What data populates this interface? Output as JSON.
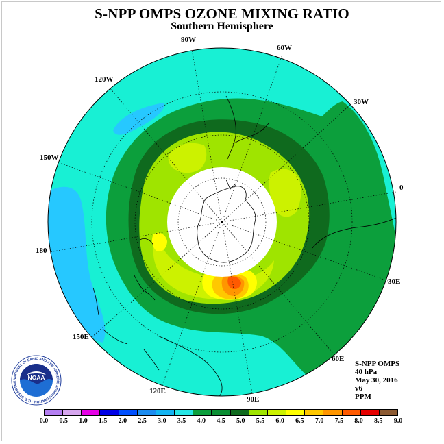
{
  "title": "S-NPP OMPS OZONE MIXING RATIO",
  "subtitle": "Southern Hemisphere",
  "longitude_labels": [
    {
      "text": "90W"
    },
    {
      "text": "60W"
    },
    {
      "text": "120W"
    },
    {
      "text": "30W"
    },
    {
      "text": "150W"
    },
    {
      "text": "0"
    },
    {
      "text": "180"
    },
    {
      "text": "30E"
    },
    {
      "text": "150E"
    },
    {
      "text": "60E"
    },
    {
      "text": "120E"
    },
    {
      "text": "90E"
    }
  ],
  "info": {
    "instrument": "S-NPP OMPS",
    "level": "40 hPa",
    "date": "May 30, 2016",
    "version": "v6",
    "units": "PPM"
  },
  "legend": {
    "ticks": [
      "0.0",
      "0.5",
      "1.0",
      "1.5",
      "2.0",
      "2.5",
      "3.0",
      "3.5",
      "4.0",
      "4.5",
      "5.0",
      "5.5",
      "6.0",
      "6.5",
      "7.0",
      "7.5",
      "8.0",
      "8.5",
      "9.0"
    ],
    "colors": [
      "#b57ff2",
      "#d6a6ee",
      "#e600e6",
      "#0000e6",
      "#0050ff",
      "#1c8cf0",
      "#14b4f2",
      "#26e6e6",
      "#0c9f3c",
      "#0a8e33",
      "#0f6a1e",
      "#9fe400",
      "#ccf200",
      "#ffff00",
      "#ffc800",
      "#ff9600",
      "#ff5a00",
      "#e60000",
      "#8c5a32"
    ]
  },
  "logo": {
    "text": "NOAA",
    "ring_text": "NATIONAL OCEANIC AND ATMOSPHERIC ADMINISTRATION · U.S. DEPARTMENT OF COMMERCE"
  },
  "map_colors": {
    "background": "#18f0d4",
    "band_4_0_4_5": "#0c9f3c",
    "band_4_5_5_0": "#0f6a1e",
    "band_5_0_5_5": "#9fe400",
    "band_5_5_6_0": "#ccf200",
    "band_6_0_6_5": "#ffff00",
    "band_6_5_7_0": "#ffc800",
    "band_7_0_7_5": "#ff9600",
    "band_7_5_8_0": "#ff5a00",
    "low_3_0_3_5": "#26c8ff",
    "missing": "#ffffff"
  }
}
